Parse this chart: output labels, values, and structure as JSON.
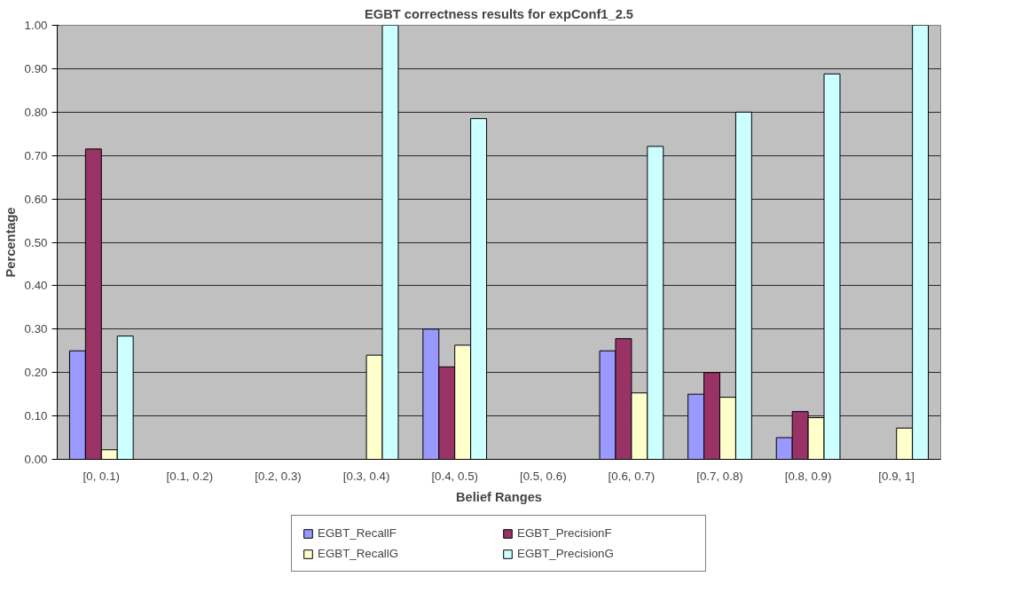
{
  "chart_data": {
    "type": "bar",
    "title": "EGBT correctness results for expConf1_2.5",
    "xlabel": "Belief Ranges",
    "ylabel": "Percentage",
    "categories": [
      "[0, 0.1)",
      "[0.1, 0.2)",
      "[0.2, 0.3)",
      "[0.3, 0.4)",
      "[0.4, 0.5)",
      "[0.5, 0.6)",
      "[0.6, 0.7)",
      "[0.7, 0.8)",
      "[0.8, 0.9)",
      "[0.9, 1]"
    ],
    "series": [
      {
        "name": "EGBT_RecallF",
        "color": "#9999ff",
        "values": [
          0.25,
          null,
          null,
          null,
          0.3,
          null,
          0.25,
          0.15,
          0.05,
          null
        ]
      },
      {
        "name": "EGBT_PrecisionF",
        "color": "#993366",
        "values": [
          0.715,
          null,
          null,
          null,
          0.213,
          null,
          0.278,
          0.2,
          0.11,
          null
        ]
      },
      {
        "name": "EGBT_RecallG",
        "color": "#ffffcc",
        "values": [
          0.022,
          null,
          null,
          0.24,
          0.263,
          null,
          0.153,
          0.143,
          0.096,
          0.072
        ]
      },
      {
        "name": "EGBT_PrecisionG",
        "color": "#ccffff",
        "values": [
          0.284,
          null,
          null,
          1.0,
          0.785,
          null,
          0.721,
          0.8,
          0.888,
          1.0
        ]
      }
    ],
    "ylim": [
      0,
      1
    ],
    "yticks": [
      {
        "value": 0,
        "label": "0.00"
      },
      {
        "value": 0.1,
        "label": "0.10"
      },
      {
        "value": 0.2,
        "label": "0.20"
      },
      {
        "value": 0.3,
        "label": "0.30"
      },
      {
        "value": 0.4,
        "label": "0.40"
      },
      {
        "value": 0.5,
        "label": "0.50"
      },
      {
        "value": 0.6,
        "label": "0.60"
      },
      {
        "value": 0.7,
        "label": "0.70"
      },
      {
        "value": 0.8,
        "label": "0.80"
      },
      {
        "value": 0.9,
        "label": "0.90"
      },
      {
        "value": 1,
        "label": "1.00"
      }
    ],
    "grid": "y",
    "legend": "bottom"
  }
}
